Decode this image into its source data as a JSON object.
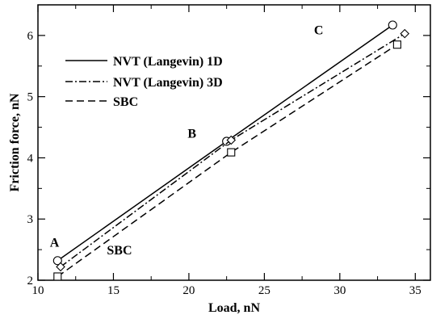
{
  "chart_data": {
    "type": "line",
    "xlabel": "Load, nN",
    "ylabel": "Friction force, nN",
    "xlim": [
      10,
      36
    ],
    "ylim": [
      2,
      6.5
    ],
    "xticks": [
      10,
      15,
      20,
      25,
      30,
      35
    ],
    "yticks": [
      2,
      3,
      4,
      5,
      6
    ],
    "grid": false,
    "legend_position": "top-left",
    "series": [
      {
        "name": "NVT (Langevin) 1D",
        "line_style": "solid",
        "marker": "circle",
        "x": [
          11.3,
          22.5,
          33.5
        ],
        "y": [
          2.32,
          4.27,
          6.17
        ]
      },
      {
        "name": "NVT (Langevin) 3D",
        "line_style": "dash-dot",
        "marker": "diamond",
        "x": [
          11.5,
          22.8,
          34.3
        ],
        "y": [
          2.22,
          4.29,
          6.03
        ]
      },
      {
        "name": "SBC",
        "line_style": "dashed",
        "marker": "square",
        "x": [
          11.3,
          22.8,
          33.8
        ],
        "y": [
          2.06,
          4.09,
          5.85
        ]
      }
    ],
    "annotations": [
      {
        "text": "A",
        "x": 11.1,
        "y": 2.55
      },
      {
        "text": "B",
        "x": 20.2,
        "y": 4.33
      },
      {
        "text": "C",
        "x": 28.6,
        "y": 6.02
      },
      {
        "text": "SBC",
        "x": 15.4,
        "y": 2.42
      }
    ]
  }
}
